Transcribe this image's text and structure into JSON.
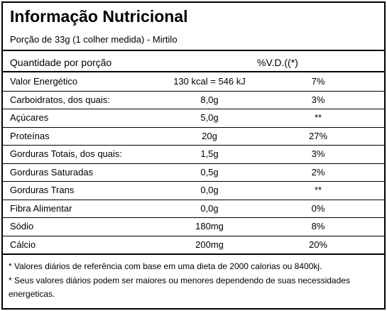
{
  "header": {
    "title": "Informação Nutricional",
    "serving": "Porção de 33g (1 colher medida) - Mirtilo"
  },
  "table": {
    "columns": [
      "Quantidade por porção",
      "%V.D.((*)"
    ],
    "rows": [
      [
        "Valor Energético",
        "130 kcal = 546 kJ",
        "7%"
      ],
      [
        "Carboidratos, dos quais:",
        "8,0g",
        "3%"
      ],
      [
        "Açúcares",
        "5,0g",
        "**"
      ],
      [
        "Proteínas",
        "20g",
        "27%"
      ],
      [
        "Gorduras Totais, dos quais:",
        "1,5g",
        "3%"
      ],
      [
        "Gorduras Saturadas",
        "0,5g",
        "2%"
      ],
      [
        "Gorduras Trans",
        "0,0g",
        "**"
      ],
      [
        "Fibra Alimentar",
        "0,0g",
        "0%"
      ],
      [
        "Sódio",
        "180mg",
        "8%"
      ],
      [
        "Cálcio",
        "200mg",
        "20%"
      ]
    ]
  },
  "footnotes": [
    "* Valores diários de referência com base em uma dieta de 2000 calorias ou 8400kj.",
    "* Seus valores diários podem ser maiores ou menores dependendo de suas necessidades energeticas."
  ]
}
